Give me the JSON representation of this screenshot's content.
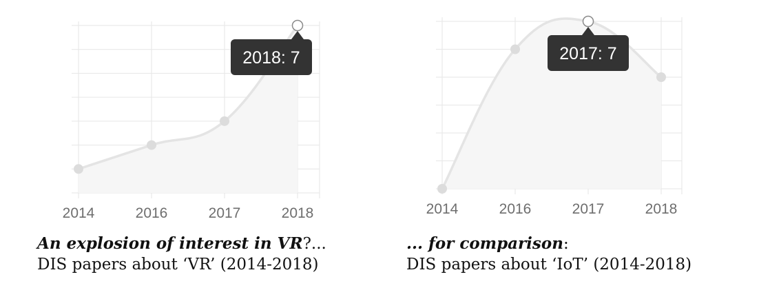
{
  "chart_data": [
    {
      "type": "area",
      "categories": [
        "2014",
        "2016",
        "2017",
        "2018"
      ],
      "series": [
        {
          "values": [
            1,
            2,
            3,
            7
          ]
        }
      ],
      "ylim": [
        0,
        7
      ],
      "grid": true,
      "tooltip": {
        "category": "2018",
        "text": "2018: 7"
      },
      "caption": {
        "emphasis": "An explosion of interest in VR",
        "emphasis_tail": "?...",
        "text": "DIS papers about ‘VR’ (2014-2018)"
      }
    },
    {
      "type": "area",
      "categories": [
        "2014",
        "2016",
        "2017",
        "2018"
      ],
      "series": [
        {
          "values": [
            1,
            6,
            7,
            5
          ]
        }
      ],
      "ylim": [
        1,
        7
      ],
      "grid": true,
      "tooltip": {
        "category": "2017",
        "text": "2017: 7"
      },
      "caption": {
        "emphasis": "... for comparison",
        "emphasis_tail": ":",
        "text": "DIS papers about ‘IoT’ (2014-2018)"
      }
    }
  ]
}
